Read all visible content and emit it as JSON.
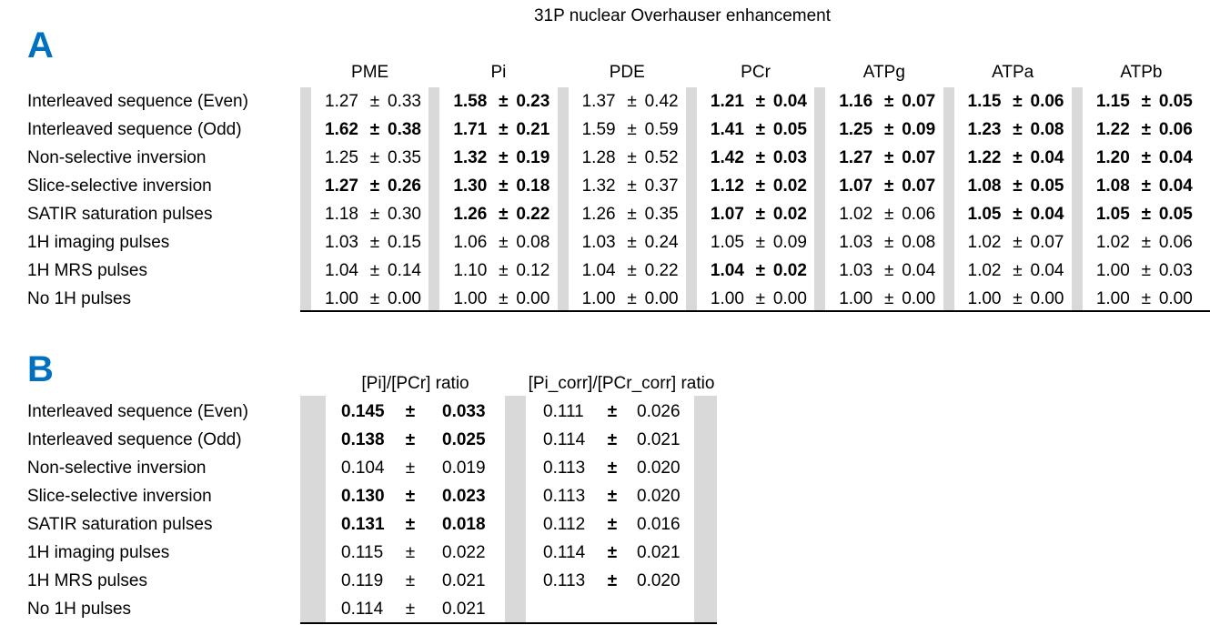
{
  "title": "31P nuclear Overhauser enhancement",
  "pm": "±",
  "table_a": {
    "label": "A",
    "columns": [
      "PME",
      "Pi",
      "PDE",
      "PCr",
      "ATPg",
      "ATPa",
      "ATPb"
    ],
    "rows": [
      {
        "label": "Interleaved sequence (Even)",
        "cells": [
          {
            "mean": "1.27",
            "sd": "0.33",
            "bold": false
          },
          {
            "mean": "1.58",
            "sd": "0.23",
            "bold": true
          },
          {
            "mean": "1.37",
            "sd": "0.42",
            "bold": false
          },
          {
            "mean": "1.21",
            "sd": "0.04",
            "bold": true
          },
          {
            "mean": "1.16",
            "sd": "0.07",
            "bold": true
          },
          {
            "mean": "1.15",
            "sd": "0.06",
            "bold": true
          },
          {
            "mean": "1.15",
            "sd": "0.05",
            "bold": true
          }
        ]
      },
      {
        "label": "Interleaved sequence (Odd)",
        "cells": [
          {
            "mean": "1.62",
            "sd": "0.38",
            "bold": true
          },
          {
            "mean": "1.71",
            "sd": "0.21",
            "bold": true
          },
          {
            "mean": "1.59",
            "sd": "0.59",
            "bold": false
          },
          {
            "mean": "1.41",
            "sd": "0.05",
            "bold": true
          },
          {
            "mean": "1.25",
            "sd": "0.09",
            "bold": true
          },
          {
            "mean": "1.23",
            "sd": "0.08",
            "bold": true
          },
          {
            "mean": "1.22",
            "sd": "0.06",
            "bold": true
          }
        ]
      },
      {
        "label": "Non-selective inversion",
        "cells": [
          {
            "mean": "1.25",
            "sd": "0.35",
            "bold": false
          },
          {
            "mean": "1.32",
            "sd": "0.19",
            "bold": true
          },
          {
            "mean": "1.28",
            "sd": "0.52",
            "bold": false
          },
          {
            "mean": "1.42",
            "sd": "0.03",
            "bold": true
          },
          {
            "mean": "1.27",
            "sd": "0.07",
            "bold": true
          },
          {
            "mean": "1.22",
            "sd": "0.04",
            "bold": true
          },
          {
            "mean": "1.20",
            "sd": "0.04",
            "bold": true
          }
        ]
      },
      {
        "label": "Slice-selective inversion",
        "cells": [
          {
            "mean": "1.27",
            "sd": "0.26",
            "bold": true
          },
          {
            "mean": "1.30",
            "sd": "0.18",
            "bold": true
          },
          {
            "mean": "1.32",
            "sd": "0.37",
            "bold": false
          },
          {
            "mean": "1.12",
            "sd": "0.02",
            "bold": true
          },
          {
            "mean": "1.07",
            "sd": "0.07",
            "bold": true
          },
          {
            "mean": "1.08",
            "sd": "0.05",
            "bold": true
          },
          {
            "mean": "1.08",
            "sd": "0.04",
            "bold": true
          }
        ]
      },
      {
        "label": "SATIR saturation pulses",
        "cells": [
          {
            "mean": "1.18",
            "sd": "0.30",
            "bold": false
          },
          {
            "mean": "1.26",
            "sd": "0.22",
            "bold": true
          },
          {
            "mean": "1.26",
            "sd": "0.35",
            "bold": false
          },
          {
            "mean": "1.07",
            "sd": "0.02",
            "bold": true
          },
          {
            "mean": "1.02",
            "sd": "0.06",
            "bold": false
          },
          {
            "mean": "1.05",
            "sd": "0.04",
            "bold": true
          },
          {
            "mean": "1.05",
            "sd": "0.05",
            "bold": true
          }
        ]
      },
      {
        "label": "1H imaging pulses",
        "cells": [
          {
            "mean": "1.03",
            "sd": "0.15",
            "bold": false
          },
          {
            "mean": "1.06",
            "sd": "0.08",
            "bold": false
          },
          {
            "mean": "1.03",
            "sd": "0.24",
            "bold": false
          },
          {
            "mean": "1.05",
            "sd": "0.09",
            "bold": false
          },
          {
            "mean": "1.03",
            "sd": "0.08",
            "bold": false
          },
          {
            "mean": "1.02",
            "sd": "0.07",
            "bold": false
          },
          {
            "mean": "1.02",
            "sd": "0.06",
            "bold": false
          }
        ]
      },
      {
        "label": "1H MRS pulses",
        "cells": [
          {
            "mean": "1.04",
            "sd": "0.14",
            "bold": false
          },
          {
            "mean": "1.10",
            "sd": "0.12",
            "bold": false
          },
          {
            "mean": "1.04",
            "sd": "0.22",
            "bold": false
          },
          {
            "mean": "1.04",
            "sd": "0.02",
            "bold": true
          },
          {
            "mean": "1.03",
            "sd": "0.04",
            "bold": false
          },
          {
            "mean": "1.02",
            "sd": "0.04",
            "bold": false
          },
          {
            "mean": "1.00",
            "sd": "0.03",
            "bold": false
          }
        ]
      },
      {
        "label": "No 1H pulses",
        "cells": [
          {
            "mean": "1.00",
            "sd": "0.00",
            "bold": false
          },
          {
            "mean": "1.00",
            "sd": "0.00",
            "bold": false
          },
          {
            "mean": "1.00",
            "sd": "0.00",
            "bold": false
          },
          {
            "mean": "1.00",
            "sd": "0.00",
            "bold": false
          },
          {
            "mean": "1.00",
            "sd": "0.00",
            "bold": false
          },
          {
            "mean": "1.00",
            "sd": "0.00",
            "bold": false
          },
          {
            "mean": "1.00",
            "sd": "0.00",
            "bold": false
          }
        ]
      }
    ]
  },
  "table_b": {
    "label": "B",
    "columns": [
      "[Pi]/[PCr] ratio",
      "[Pi_corr]/[PCr_corr] ratio"
    ],
    "rows": [
      {
        "label": "Interleaved sequence (Even)",
        "cells": [
          {
            "mean": "0.145",
            "sd": "0.033",
            "bold": true
          },
          {
            "mean": "0.111",
            "sd": "0.026",
            "bold": false
          }
        ]
      },
      {
        "label": "Interleaved sequence (Odd)",
        "cells": [
          {
            "mean": "0.138",
            "sd": "0.025",
            "bold": true
          },
          {
            "mean": "0.114",
            "sd": "0.021",
            "bold": false
          }
        ]
      },
      {
        "label": "Non-selective inversion",
        "cells": [
          {
            "mean": "0.104",
            "sd": "0.019",
            "bold": false
          },
          {
            "mean": "0.113",
            "sd": "0.020",
            "bold": false
          }
        ]
      },
      {
        "label": "Slice-selective inversion",
        "cells": [
          {
            "mean": "0.130",
            "sd": "0.023",
            "bold": true
          },
          {
            "mean": "0.113",
            "sd": "0.020",
            "bold": false
          }
        ]
      },
      {
        "label": "SATIR saturation pulses",
        "cells": [
          {
            "mean": "0.131",
            "sd": "0.018",
            "bold": true
          },
          {
            "mean": "0.112",
            "sd": "0.016",
            "bold": false
          }
        ]
      },
      {
        "label": "1H imaging pulses",
        "cells": [
          {
            "mean": "0.115",
            "sd": "0.022",
            "bold": false
          },
          {
            "mean": "0.114",
            "sd": "0.021",
            "bold": false
          }
        ]
      },
      {
        "label": "1H MRS pulses",
        "cells": [
          {
            "mean": "0.119",
            "sd": "0.021",
            "bold": false
          },
          {
            "mean": "0.113",
            "sd": "0.020",
            "bold": false
          }
        ]
      },
      {
        "label": "No 1H pulses",
        "cells": [
          {
            "mean": "0.114",
            "sd": "0.021",
            "bold": false
          },
          null
        ]
      }
    ]
  }
}
